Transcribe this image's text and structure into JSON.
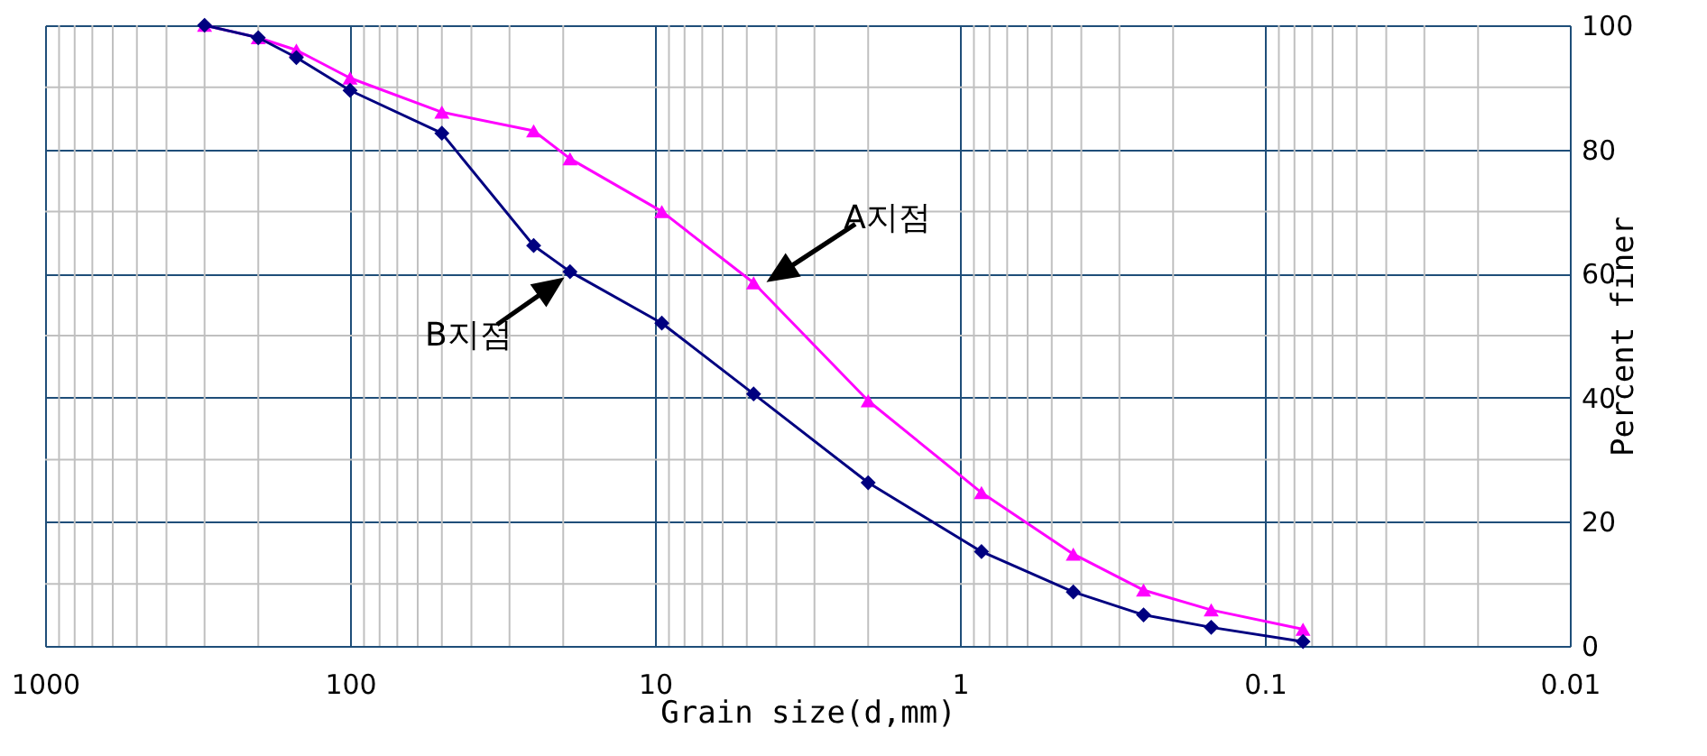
{
  "chart_data": {
    "type": "line",
    "xlabel": "Grain size(d,mm)",
    "ylabel": "Percent finer",
    "x": [
      300,
      200,
      150,
      100,
      50,
      25,
      19,
      9.5,
      4.75,
      2.0,
      0.85,
      0.425,
      0.25,
      0.15,
      0.075
    ],
    "series": [
      {
        "color": "#ff00ff",
        "marker": "triangle",
        "values": [
          100,
          98,
          96,
          91.5,
          86,
          83,
          78.5,
          70,
          58.5,
          39.5,
          24.7,
          14.8,
          9,
          5.8,
          2.7
        ]
      },
      {
        "color": "#000080",
        "marker": "diamond",
        "values": [
          100,
          98,
          94.8,
          89.5,
          82.6,
          64.5,
          60.3,
          52,
          40.6,
          26.3,
          15.2,
          8.7,
          5,
          3,
          0.7
        ]
      }
    ],
    "annotations": [
      {
        "text": "A지점",
        "x": 4.5,
        "y": 58
      },
      {
        "text": "B지점",
        "x": 19,
        "y": 60
      }
    ],
    "log": "x",
    "xlim": [
      1000,
      0.01
    ],
    "xticks": [
      1000,
      100,
      10,
      1,
      0.1,
      0.01
    ],
    "ylim": [
      0,
      100
    ],
    "yticks": [
      0,
      20,
      40,
      60,
      80,
      100
    ],
    "grid": true
  }
}
